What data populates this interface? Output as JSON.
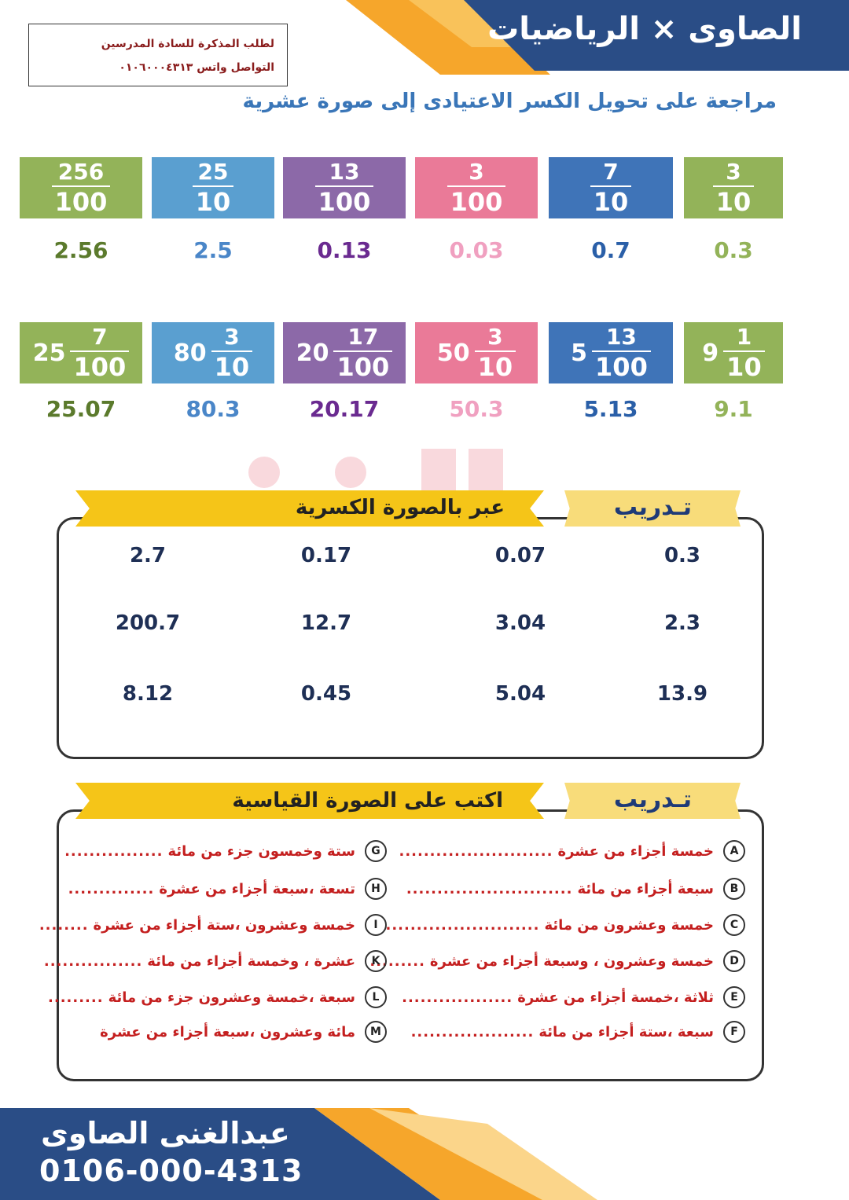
{
  "header": {
    "title": "الصاوى × الرياضيات",
    "contact_line1": "لطلب المذكرة للسادة المدرسين",
    "contact_line2": "التواصل واتس ٠١٠٦٠٠٠٤٣١٣"
  },
  "subtitle": "مراجعة على تحويل الكسر الاعتيادى إلى صورة عشرية",
  "colors": {
    "green": "#93b359",
    "blue": "#3f74b8",
    "pink": "#ea7a98",
    "purple": "#8c69a8",
    "lightblue": "#5a9fd0",
    "navy": "#2a4d86",
    "orange": "#f6a62b",
    "yellow": "#f5c518"
  },
  "fractions_row1": [
    {
      "num": "3",
      "den": "10",
      "value": "0.3",
      "color": "#93b359",
      "value_color": "#93b359"
    },
    {
      "num": "7",
      "den": "10",
      "value": "0.7",
      "color": "#3f74b8",
      "value_color": "#2a5fa8"
    },
    {
      "num": "3",
      "den": "100",
      "value": "0.03",
      "color": "#ea7a98",
      "value_color": "#f0a0c0"
    },
    {
      "num": "13",
      "den": "100",
      "value": "0.13",
      "color": "#8c69a8",
      "value_color": "#6a2a90"
    },
    {
      "num": "25",
      "den": "10",
      "value": "2.5",
      "color": "#5a9fd0",
      "value_color": "#4a86c8"
    },
    {
      "num": "256",
      "den": "100",
      "value": "2.56",
      "color": "#93b359",
      "value_color": "#5b7a2c"
    }
  ],
  "fractions_row2": [
    {
      "whole": "9",
      "num": "1",
      "den": "10",
      "value": "9.1",
      "color": "#93b359",
      "value_color": "#93b359"
    },
    {
      "whole": "5",
      "num": "13",
      "den": "100",
      "value": "5.13",
      "color": "#3f74b8",
      "value_color": "#2a5fa8"
    },
    {
      "whole": "50",
      "num": "3",
      "den": "10",
      "value": "50.3",
      "color": "#ea7a98",
      "value_color": "#f0a0c0"
    },
    {
      "whole": "20",
      "num": "17",
      "den": "100",
      "value": "20.17",
      "color": "#8c69a8",
      "value_color": "#6a2a90"
    },
    {
      "whole": "80",
      "num": "3",
      "den": "10",
      "value": "80.3",
      "color": "#5a9fd0",
      "value_color": "#4a86c8"
    },
    {
      "whole": "25",
      "num": "7",
      "den": "100",
      "value": "25.07",
      "color": "#93b359",
      "value_color": "#5b7a2c"
    }
  ],
  "practice1": {
    "label": "تـدريب",
    "instruction": "عبر بالصورة الكسرية",
    "rows": [
      [
        "0.3",
        "0.07",
        "0.17",
        "2.7"
      ],
      [
        "2.3",
        "3.04",
        "12.7",
        "200.7"
      ],
      [
        "13.9",
        "5.04",
        "0.45",
        "8.12"
      ]
    ]
  },
  "practice2": {
    "label": "تـدريب",
    "instruction": "اكتب على الصورة القياسية",
    "right_items": [
      {
        "letter": "A",
        "text": "خمسة أجزاء من عشرة",
        "dots": "........................."
      },
      {
        "letter": "B",
        "text": "سبعة أجزاء من مائة",
        "dots": "..........................."
      },
      {
        "letter": "C",
        "text": "خمسة وعشرون من مائة",
        "dots": "........................."
      },
      {
        "letter": "D",
        "text": "خمسة وعشرون ، وسبعة أجزاء من عشرة",
        "dots": "........."
      },
      {
        "letter": "E",
        "text": "ثلاثة ،خمسة أجزاء من عشرة",
        "dots": ".................."
      },
      {
        "letter": "F",
        "text": "سبعة ،ستة أجزاء من مائة",
        "dots": "...................."
      }
    ],
    "left_items": [
      {
        "letter": "G",
        "text": "ستة وخمسون جزء من مائة",
        "dots": "................"
      },
      {
        "letter": "H",
        "text": "تسعة ،سبعة أجزاء من عشرة",
        "dots": ".............."
      },
      {
        "letter": "I",
        "text": "خمسة وعشرون ،ستة أجزاء من عشرة",
        "dots": "........"
      },
      {
        "letter": "K",
        "text": "عشرة ، وخمسة أجزاء من مائة",
        "dots": "................"
      },
      {
        "letter": "L",
        "text": "سبعة ،خمسة وعشرون جزء من مائة",
        "dots": "........."
      },
      {
        "letter": "M",
        "text": "مائة وعشرون ،سبعة أجزاء من عشرة",
        "dots": ""
      }
    ]
  },
  "footer": {
    "name": "عبدالغنى الصاوى",
    "phone": "0106-000-4313"
  }
}
